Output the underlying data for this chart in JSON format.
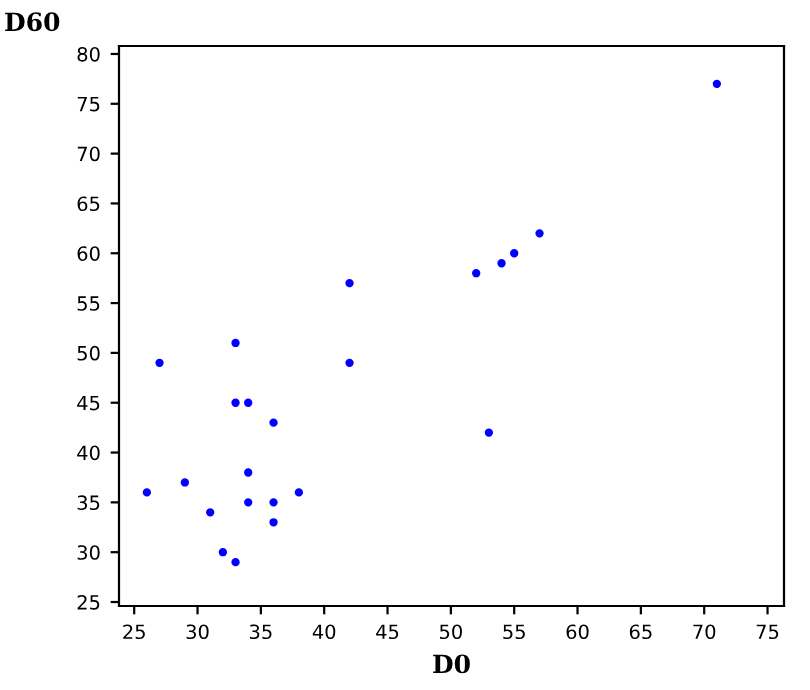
{
  "chart_data": {
    "type": "scatter",
    "xlabel": "D0",
    "ylabel": "D60",
    "series": [
      {
        "color": "#0000ff",
        "x": [
          71,
          42,
          52,
          54,
          55,
          57,
          27,
          33,
          42,
          33,
          34,
          36,
          53,
          34,
          26,
          29,
          38,
          34,
          36,
          31,
          36,
          32,
          33
        ],
        "values": [
          77,
          57,
          58,
          59,
          60,
          62,
          49,
          51,
          49,
          45,
          45,
          43,
          42,
          38,
          36,
          37,
          36,
          35,
          35,
          34,
          33,
          30,
          29
        ]
      }
    ],
    "xlim": [
      23.8,
      76.3
    ],
    "ylim": [
      24.6,
      80.8
    ],
    "xticks": [
      25,
      30,
      35,
      40,
      45,
      50,
      55,
      60,
      65,
      70,
      75
    ],
    "yticks": [
      25,
      30,
      35,
      40,
      45,
      50,
      55,
      60,
      65,
      70,
      75,
      80
    ],
    "marker": "circle",
    "grid": false,
    "legend": false
  }
}
